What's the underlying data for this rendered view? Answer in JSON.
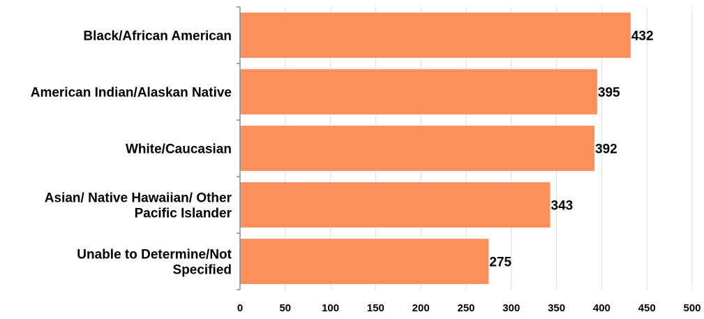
{
  "chart_data": {
    "type": "bar",
    "orientation": "horizontal",
    "categories": [
      "Black/African American",
      "American Indian/Alaskan Native",
      "White/Caucasian",
      "Asian/ Native Hawaiian/ Other Pacific Islander",
      "Unable to Determine/Not Specified"
    ],
    "category_lines": [
      [
        "Black/African American"
      ],
      [
        "American Indian/Alaskan Native"
      ],
      [
        "White/Caucasian"
      ],
      [
        "Asian/ Native Hawaiian/ Other",
        "Pacific Islander"
      ],
      [
        "Unable to Determine/Not",
        "Specified"
      ]
    ],
    "values": [
      432,
      395,
      392,
      343,
      275
    ],
    "data_labels": [
      "432",
      "395",
      "392",
      "343",
      "275"
    ],
    "xlim": [
      0,
      500
    ],
    "xticks": [
      0,
      50,
      100,
      150,
      200,
      250,
      300,
      350,
      400,
      450,
      500
    ],
    "xtick_labels": [
      "0",
      "50",
      "100",
      "150",
      "200",
      "250",
      "300",
      "350",
      "400",
      "450",
      "500"
    ],
    "title": "",
    "xlabel": "",
    "ylabel": "",
    "grid": "vertical",
    "legend": "none",
    "colors": {
      "bar": "#FD8F5C",
      "grid": "#dcdcdc",
      "axis": "#888888",
      "text": "#000000"
    }
  }
}
